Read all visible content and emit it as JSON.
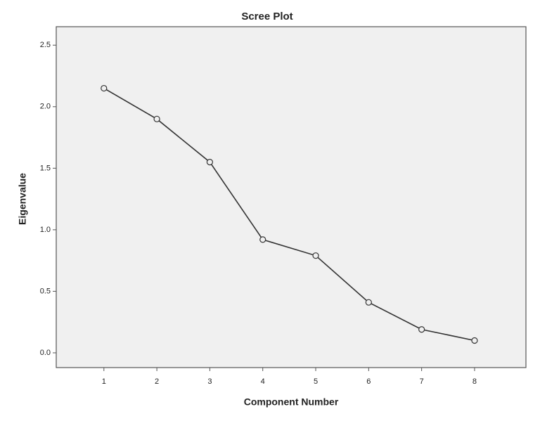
{
  "chart_data": {
    "type": "line",
    "title": "Scree Plot",
    "x_label": "Component Number",
    "y_label": "Eigenvalue",
    "x": [
      1,
      2,
      3,
      4,
      5,
      6,
      7,
      8
    ],
    "series": [
      {
        "name": "Eigenvalue",
        "color": "#333333",
        "values": [
          2.15,
          1.9,
          1.55,
          0.92,
          0.79,
          0.41,
          0.19,
          0.1
        ]
      }
    ],
    "xlim": [
      0.1,
      8.97
    ],
    "xticks": [
      1,
      2,
      3,
      4,
      5,
      6,
      7,
      8
    ],
    "ylim": [
      -0.12,
      2.65
    ],
    "yticks": [
      {
        "value": 0,
        "label": "0.0"
      },
      0.5,
      {
        "value": 1,
        "label": "1.0"
      },
      1.5,
      {
        "value": 2,
        "label": "2.0"
      },
      2.5
    ],
    "background": "#f0f0f0",
    "grid": false
  }
}
